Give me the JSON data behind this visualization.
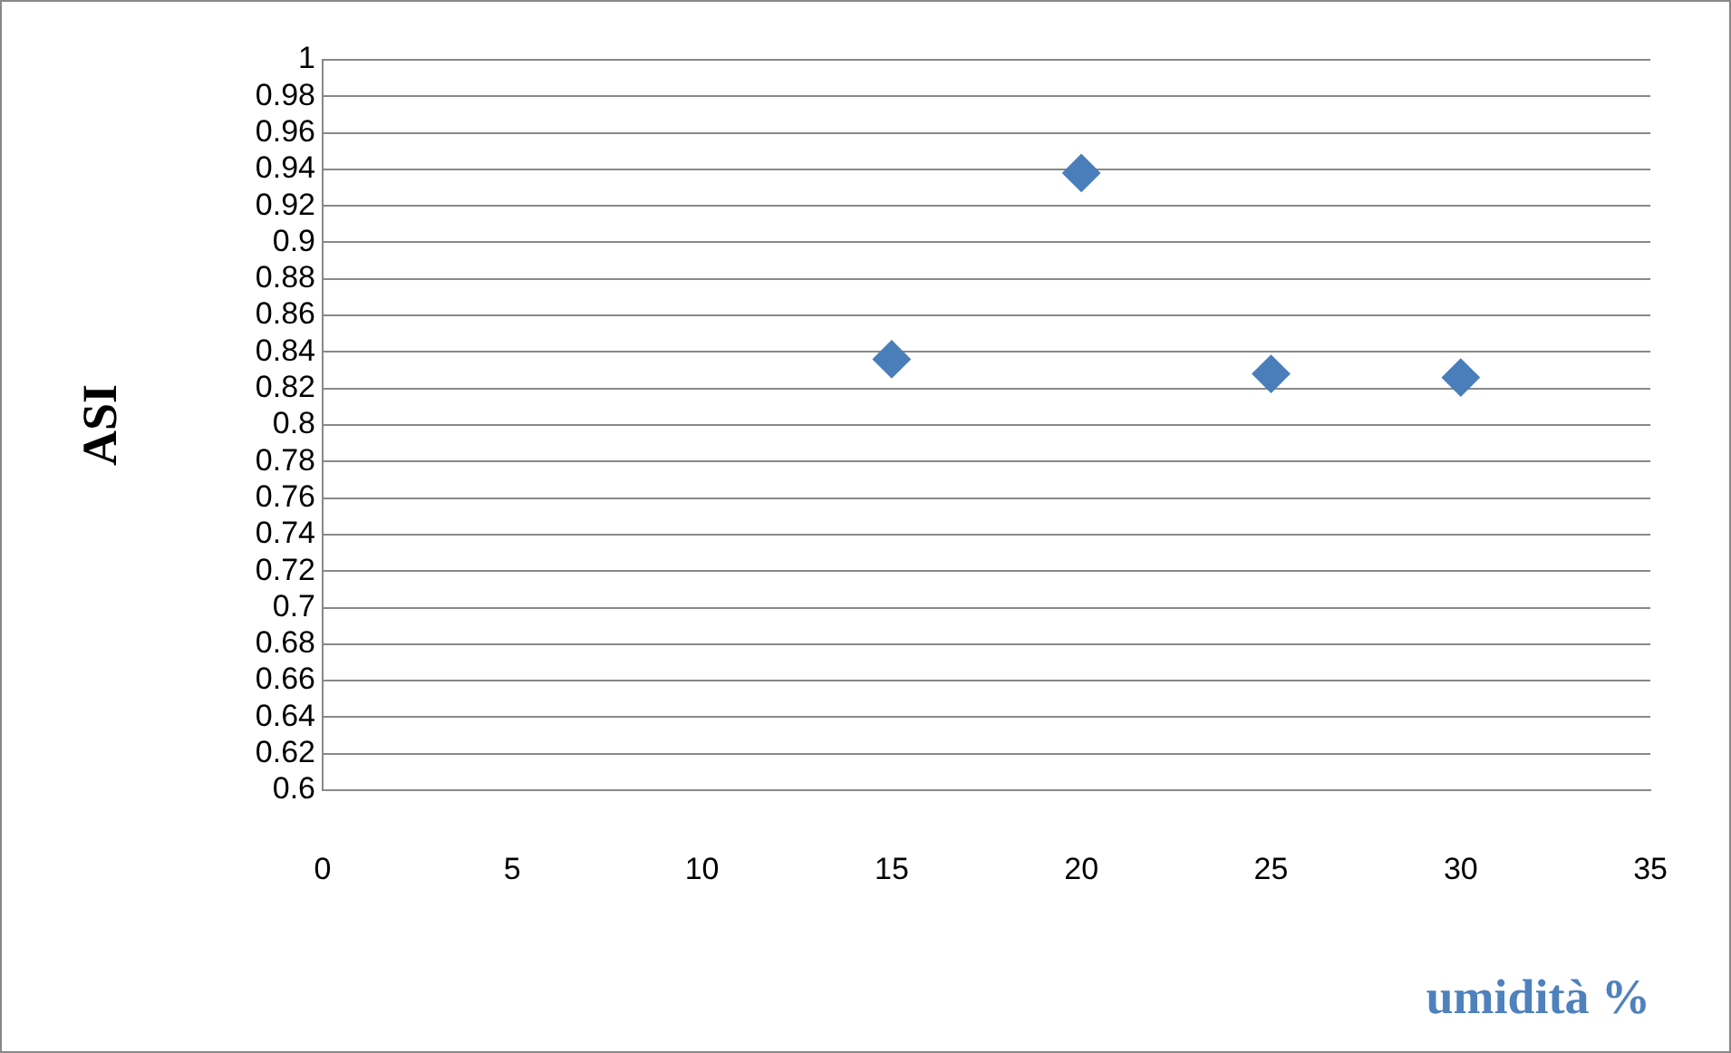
{
  "chart_data": {
    "type": "scatter",
    "xlabel": "umidità %",
    "ylabel": "ASI",
    "x": [
      15,
      20,
      25,
      30
    ],
    "series": [
      {
        "color": "#4a7ebb",
        "values": [
          0.836,
          0.938,
          0.828,
          0.826
        ]
      }
    ],
    "xlim": [
      0,
      35
    ],
    "xticks": [
      0,
      5,
      10,
      15,
      20,
      25,
      30,
      35
    ],
    "ylim": [
      0.6,
      1
    ],
    "yticks": [
      0.6,
      0.62,
      0.64,
      0.66,
      0.68,
      0.7,
      0.72,
      0.74,
      0.76,
      0.78,
      0.8,
      0.82,
      0.84,
      0.86,
      0.88,
      0.9,
      0.92,
      0.94,
      0.96,
      0.98,
      1
    ],
    "grid": "y",
    "marker": "diamond",
    "legend": false
  }
}
